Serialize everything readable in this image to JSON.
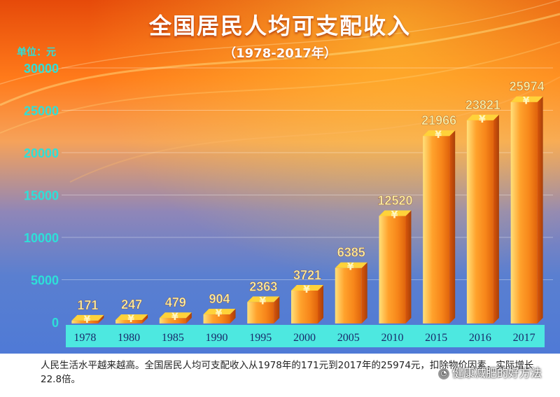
{
  "colors": {
    "bar_light": "#ffe07a",
    "bar_mid": "#ffa22c",
    "bar_dark": "#e0640c",
    "bar_top": "#ffd23a",
    "value_label": "#fff3a8",
    "axis_label": "#2de0d8",
    "tick_band": "#4de8e0",
    "tick_text": "#1a2a6a"
  },
  "watermark": {
    "icon": "wechat-icon",
    "text": "健康减肥的好方法"
  },
  "caption": "人民生活水平越来越高。全国居民人均可支配收入从1978年的171元到2017年的25974元，扣除物价因素，实际增长22.8倍。",
  "chart_data": {
    "type": "bar",
    "title": "全国居民人均可支配收入",
    "subtitle": "（1978-2017年）",
    "ylabel": "单位：元",
    "xlabel": "",
    "ylim": [
      0,
      30000
    ],
    "yticks": [
      "0",
      "5000",
      "10000",
      "15000",
      "20000",
      "25000",
      "30000"
    ],
    "ytick_values": [
      0,
      5000,
      10000,
      15000,
      20000,
      25000,
      30000
    ],
    "grid": true,
    "legend": "none",
    "categories": [
      "1978",
      "1980",
      "1985",
      "1990",
      "1995",
      "2000",
      "2005",
      "2010",
      "2015",
      "2016",
      "2017"
    ],
    "values": [
      171,
      247,
      479,
      904,
      2363,
      3721,
      6385,
      12520,
      21966,
      23821,
      25974
    ],
    "value_labels": [
      "171",
      "247",
      "479",
      "904",
      "2363",
      "3721",
      "6385",
      "12520",
      "21966",
      "23821",
      "25974"
    ]
  }
}
